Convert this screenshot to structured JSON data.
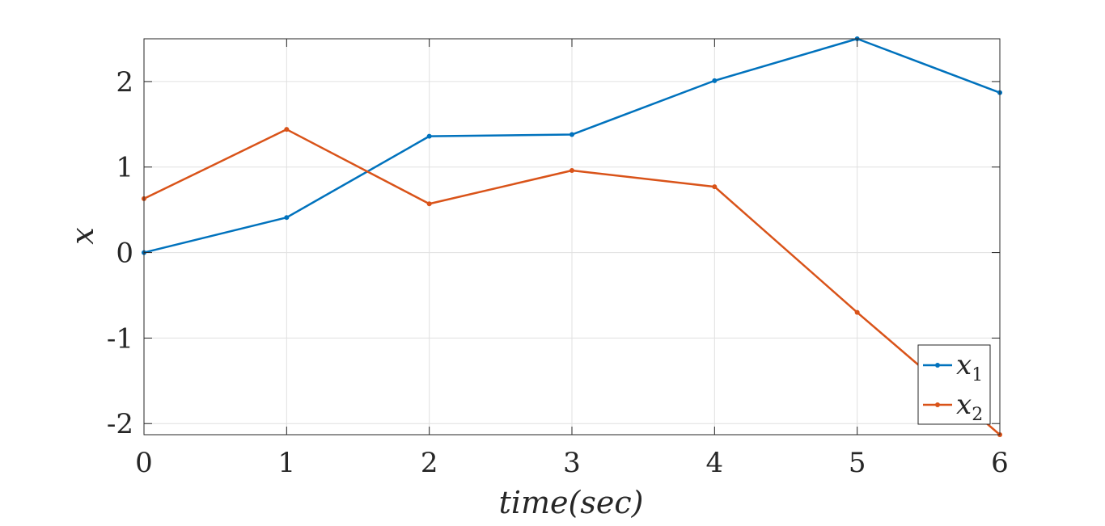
{
  "chart_data": {
    "type": "line",
    "xlabel": "time(sec)",
    "ylabel": "x",
    "xlim": [
      0,
      6
    ],
    "ylim": [
      -2.13,
      2.5
    ],
    "x_ticks": [
      "0",
      "1",
      "2",
      "3",
      "4",
      "5",
      "6"
    ],
    "y_ticks": [
      "2",
      "1",
      "0",
      "-1",
      "-2"
    ],
    "grid": true,
    "legend_position": "bottom-right",
    "x": [
      0,
      1,
      2,
      3,
      4,
      5,
      6
    ],
    "series": [
      {
        "name": "x",
        "subscript": "1",
        "color": "#0072BD",
        "values": [
          0.0,
          0.41,
          1.36,
          1.38,
          2.01,
          2.5,
          1.87
        ]
      },
      {
        "name": "x",
        "subscript": "2",
        "color": "#D95319",
        "values": [
          0.63,
          1.44,
          0.57,
          0.96,
          0.77,
          -0.7,
          -2.13
        ]
      }
    ]
  }
}
